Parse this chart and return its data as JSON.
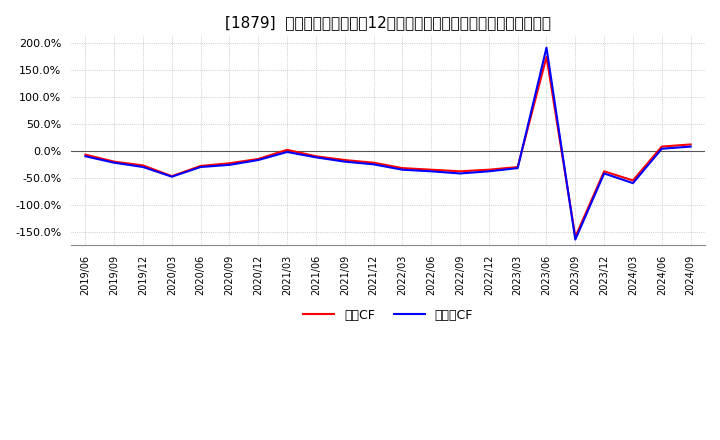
{
  "title": "[1879]  キャッシュフローの12か月移動合計の対前年同期増減率の推移",
  "legend_labels": [
    "営業CF",
    "フリーCF"
  ],
  "line_colors": [
    "#ff0000",
    "#0000ff"
  ],
  "ylim": [
    -1.75,
    2.15
  ],
  "yticks": [
    -1.5,
    -1.0,
    -0.5,
    0.0,
    0.5,
    1.0,
    1.5,
    2.0
  ],
  "ytick_labels": [
    "-150.0%",
    "-100.0%",
    "-50.0%",
    "0.0%",
    "50.0%",
    "100.0%",
    "150.0%",
    "200.0%"
  ],
  "dates": [
    "2019/06",
    "2019/09",
    "2019/12",
    "2020/03",
    "2020/06",
    "2020/09",
    "2020/12",
    "2021/03",
    "2021/06",
    "2021/09",
    "2021/12",
    "2022/03",
    "2022/06",
    "2022/09",
    "2022/12",
    "2023/03",
    "2023/06",
    "2023/09",
    "2023/12",
    "2024/03",
    "2024/06",
    "2024/09"
  ],
  "operating_cf": [
    -0.07,
    -0.2,
    -0.27,
    -0.47,
    -0.28,
    -0.23,
    -0.15,
    0.02,
    -0.1,
    -0.17,
    -0.22,
    -0.32,
    -0.35,
    -0.38,
    -0.35,
    -0.3,
    1.75,
    -1.6,
    -0.38,
    -0.55,
    0.08,
    0.12
  ],
  "free_cf": [
    -0.1,
    -0.22,
    -0.3,
    -0.48,
    -0.3,
    -0.26,
    -0.17,
    -0.02,
    -0.12,
    -0.2,
    -0.25,
    -0.35,
    -0.38,
    -0.42,
    -0.38,
    -0.32,
    1.92,
    -1.65,
    -0.42,
    -0.6,
    0.04,
    0.08
  ],
  "background_color": "#ffffff",
  "grid_color": "#aaaaaa",
  "line_width": 1.5
}
